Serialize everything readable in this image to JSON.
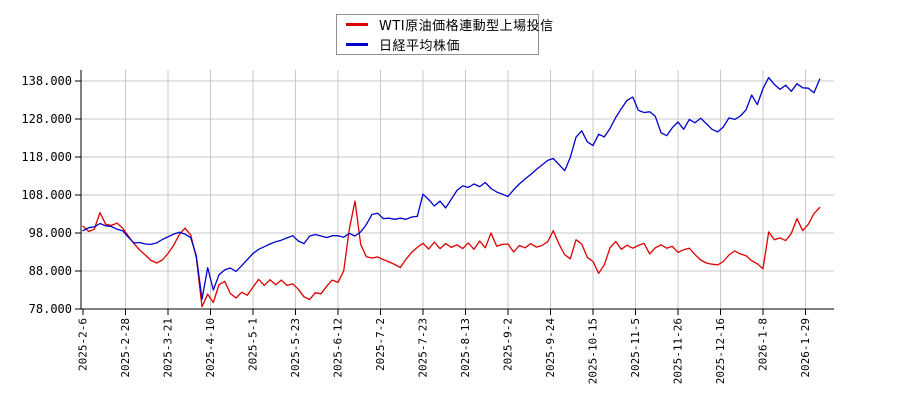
{
  "legend": {
    "items": [
      {
        "label": "WTI原油価格連動型上場投信",
        "color": "#dd0000"
      },
      {
        "label": "日経平均株価",
        "color": "#0000cc"
      }
    ]
  },
  "chart_data": {
    "type": "line",
    "title": "",
    "xlabel": "",
    "ylabel": "",
    "grid": true,
    "legend_position": "top-center",
    "ylim": [
      78,
      141
    ],
    "y_ticks": [
      78,
      88,
      98,
      108,
      118,
      128,
      138
    ],
    "y_tick_labels": [
      "78.000",
      "88.000",
      "98.000",
      "108.000",
      "118.000",
      "128.000",
      "138.000"
    ],
    "x_tick_labels": [
      "2025-2-6",
      "2025-2-28",
      "2025-3-21",
      "2025-4-10",
      "2025-5-1",
      "2025-5-23",
      "2025-6-12",
      "2025-7-2",
      "2025-7-23",
      "2025-8-13",
      "2025-9-2",
      "2025-9-24",
      "2025-10-15",
      "2025-11-5",
      "2025-11-26",
      "2025-12-16",
      "2026-1-8",
      "2026-1-29"
    ],
    "x_unit": "trading-days",
    "x_step_per_point": 2,
    "ticks_every_days": 15,
    "series": [
      {
        "name": "WTI原油価格連動型上場投信",
        "color": "#dd0000",
        "values": [
          99.8,
          98.4,
          99.0,
          103.4,
          100.3,
          100.0,
          100.6,
          99.3,
          97.2,
          95.2,
          93.5,
          92.2,
          90.8,
          90.1,
          90.9,
          92.6,
          94.8,
          97.6,
          99.3,
          97.5,
          91.5,
          78.6,
          81.9,
          79.7,
          84.4,
          85.3,
          82.1,
          80.9,
          82.4,
          81.6,
          83.8,
          85.8,
          84.2,
          85.7,
          84.4,
          85.6,
          84.2,
          84.6,
          83.2,
          81.2,
          80.5,
          82.3,
          82.0,
          84.0,
          85.6,
          85.0,
          88.0,
          99.0,
          106.4,
          95.0,
          91.8,
          91.4,
          91.7,
          91.0,
          90.4,
          89.7,
          88.9,
          91.1,
          92.9,
          94.2,
          95.3,
          93.8,
          95.6,
          93.9,
          95.2,
          94.2,
          94.9,
          93.9,
          95.4,
          93.7,
          95.9,
          94.1,
          98.0,
          94.5,
          95.0,
          95.1,
          93.0,
          94.7,
          94.1,
          95.2,
          94.3,
          94.7,
          95.7,
          98.6,
          95.1,
          92.3,
          91.2,
          96.2,
          95.1,
          91.6,
          90.5,
          87.4,
          89.6,
          94.1,
          95.8,
          93.7,
          94.8,
          94.0,
          94.7,
          95.3,
          92.5,
          94.1,
          94.9,
          94.0,
          94.5,
          92.9,
          93.6,
          94.0,
          92.3,
          90.9,
          90.1,
          89.8,
          89.6,
          90.5,
          92.2,
          93.3,
          92.5,
          92.0,
          90.7,
          89.9,
          88.6,
          98.3,
          96.2,
          96.7,
          96.0,
          97.9,
          101.8,
          98.6,
          100.3,
          103.1,
          104.7
        ]
      },
      {
        "name": "日経平均株価",
        "color": "#0000cc",
        "values": [
          98.6,
          99.4,
          99.6,
          100.5,
          99.9,
          99.7,
          99.0,
          98.6,
          96.9,
          95.4,
          95.5,
          95.1,
          95.0,
          95.4,
          96.3,
          97.0,
          97.7,
          98.2,
          97.7,
          96.8,
          92.0,
          80.6,
          88.9,
          83.0,
          87.0,
          88.3,
          88.8,
          87.9,
          89.4,
          91.0,
          92.6,
          93.7,
          94.4,
          95.1,
          95.7,
          96.1,
          96.7,
          97.3,
          95.9,
          95.2,
          97.2,
          97.6,
          97.2,
          96.8,
          97.3,
          97.3,
          96.9,
          97.9,
          97.2,
          98.3,
          100.2,
          102.9,
          103.2,
          101.8,
          101.9,
          101.6,
          101.9,
          101.6,
          102.2,
          102.4,
          108.2,
          106.8,
          105.1,
          106.4,
          104.6,
          106.9,
          109.2,
          110.4,
          110.0,
          110.9,
          110.2,
          111.3,
          109.7,
          108.8,
          108.2,
          107.6,
          109.4,
          110.9,
          112.2,
          113.4,
          114.7,
          115.9,
          117.1,
          117.6,
          116.0,
          114.4,
          117.9,
          123.2,
          124.9,
          122.0,
          121.0,
          124.0,
          123.3,
          125.5,
          128.4,
          130.7,
          132.9,
          133.8,
          130.3,
          129.7,
          129.9,
          128.7,
          124.4,
          123.6,
          125.7,
          127.2,
          125.3,
          127.9,
          127.0,
          128.2,
          126.8,
          125.3,
          124.6,
          125.9,
          128.3,
          127.9,
          128.8,
          130.4,
          134.3,
          131.8,
          136.0,
          138.9,
          137.1,
          135.8,
          136.9,
          135.3,
          137.3,
          136.2,
          136.1,
          134.9,
          138.5
        ]
      }
    ]
  },
  "style": {
    "grid_color": "#c8c8c8",
    "axis_color": "#000000",
    "tick_label_color": "#000000",
    "background": "#ffffff"
  }
}
